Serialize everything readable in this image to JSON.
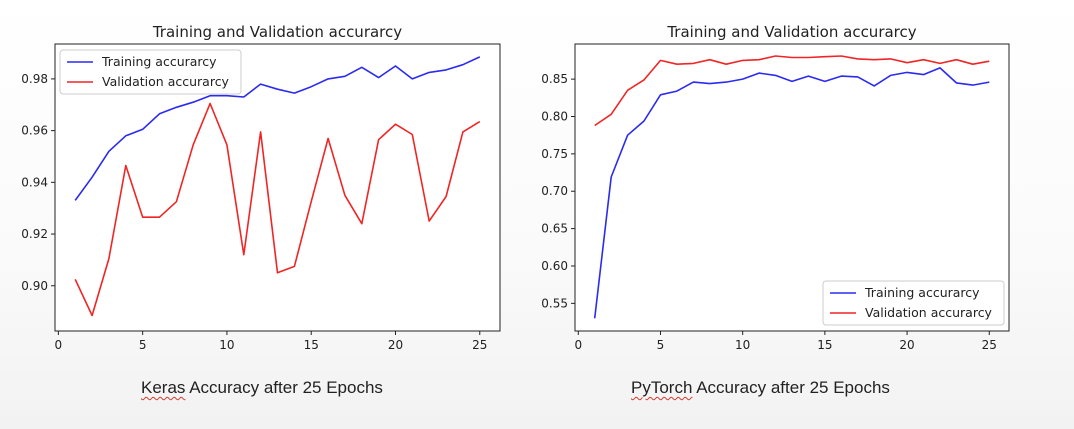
{
  "chart_data": [
    {
      "type": "line",
      "title": "Training and Validation accurarcy",
      "xlim": [
        -0.2,
        26.2
      ],
      "ylim": [
        0.8825,
        0.9935
      ],
      "x_ticks": [
        0,
        5,
        10,
        15,
        20,
        25
      ],
      "y_ticks": [
        0.9,
        0.92,
        0.94,
        0.96,
        0.98
      ],
      "legend_position": "top-left",
      "series": [
        {
          "name": "Training accurarcy",
          "color": "#2b2bf0",
          "x": [
            1,
            2,
            3,
            4,
            5,
            6,
            7,
            8,
            9,
            10,
            11,
            12,
            13,
            14,
            15,
            16,
            17,
            18,
            19,
            20,
            21,
            22,
            23,
            24,
            25
          ],
          "values": [
            0.933,
            0.942,
            0.952,
            0.958,
            0.9605,
            0.9665,
            0.969,
            0.971,
            0.9735,
            0.9735,
            0.973,
            0.978,
            0.976,
            0.9745,
            0.977,
            0.98,
            0.981,
            0.9845,
            0.9805,
            0.985,
            0.98,
            0.9825,
            0.9835,
            0.9855,
            0.9885
          ]
        },
        {
          "name": "Validation accurarcy",
          "color": "#f02525",
          "x": [
            1,
            2,
            3,
            4,
            5,
            6,
            7,
            8,
            9,
            10,
            11,
            12,
            13,
            14,
            15,
            16,
            17,
            18,
            19,
            20,
            21,
            22,
            23,
            24,
            25
          ],
          "values": [
            0.9025,
            0.8885,
            0.9105,
            0.9465,
            0.9265,
            0.9265,
            0.9325,
            0.9545,
            0.9705,
            0.9545,
            0.912,
            0.9595,
            0.905,
            0.9075,
            0.9325,
            0.957,
            0.935,
            0.924,
            0.9565,
            0.9625,
            0.9585,
            0.925,
            0.9345,
            0.9595,
            0.9635
          ]
        }
      ]
    },
    {
      "type": "line",
      "title": "Training and Validation accurarcy",
      "xlim": [
        -0.2,
        26.2
      ],
      "ylim": [
        0.513,
        0.897
      ],
      "x_ticks": [
        0,
        5,
        10,
        15,
        20,
        25
      ],
      "y_ticks": [
        0.55,
        0.6,
        0.65,
        0.7,
        0.75,
        0.8,
        0.85
      ],
      "legend_position": "bottom-right",
      "series": [
        {
          "name": "Training accurarcy",
          "color": "#2b2bf0",
          "x": [
            1,
            2,
            3,
            4,
            5,
            6,
            7,
            8,
            9,
            10,
            11,
            12,
            13,
            14,
            15,
            16,
            17,
            18,
            19,
            20,
            21,
            22,
            23,
            24,
            25
          ],
          "values": [
            0.53,
            0.719,
            0.775,
            0.794,
            0.829,
            0.834,
            0.846,
            0.844,
            0.846,
            0.85,
            0.858,
            0.855,
            0.847,
            0.854,
            0.847,
            0.854,
            0.853,
            0.841,
            0.855,
            0.859,
            0.856,
            0.865,
            0.845,
            0.842,
            0.846
          ]
        },
        {
          "name": "Validation accurarcy",
          "color": "#f02525",
          "x": [
            1,
            2,
            3,
            4,
            5,
            6,
            7,
            8,
            9,
            10,
            11,
            12,
            13,
            14,
            15,
            16,
            17,
            18,
            19,
            20,
            21,
            22,
            23,
            24,
            25
          ],
          "values": [
            0.788,
            0.803,
            0.835,
            0.849,
            0.875,
            0.87,
            0.871,
            0.876,
            0.87,
            0.875,
            0.876,
            0.881,
            0.879,
            0.879,
            0.88,
            0.881,
            0.877,
            0.876,
            0.877,
            0.872,
            0.876,
            0.871,
            0.876,
            0.87,
            0.874
          ]
        }
      ]
    }
  ],
  "captions": {
    "keras_word": "Keras",
    "keras_rest": " Accuracy after 25 Epochs",
    "pytorch_word": "PyTorch",
    "pytorch_rest": " Accuracy after 25 Epochs"
  }
}
